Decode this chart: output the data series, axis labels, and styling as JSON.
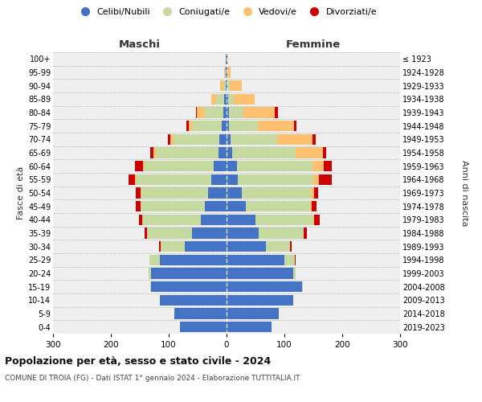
{
  "age_groups": [
    "0-4",
    "5-9",
    "10-14",
    "15-19",
    "20-24",
    "25-29",
    "30-34",
    "35-39",
    "40-44",
    "45-49",
    "50-54",
    "55-59",
    "60-64",
    "65-69",
    "70-74",
    "75-79",
    "80-84",
    "85-89",
    "90-94",
    "95-99",
    "100+"
  ],
  "birth_years": [
    "2019-2023",
    "2014-2018",
    "2009-2013",
    "2004-2008",
    "1999-2003",
    "1994-1998",
    "1989-1993",
    "1984-1988",
    "1979-1983",
    "1974-1978",
    "1969-1973",
    "1964-1968",
    "1959-1963",
    "1954-1958",
    "1949-1953",
    "1944-1948",
    "1939-1943",
    "1934-1938",
    "1929-1933",
    "1924-1928",
    "≤ 1923"
  ],
  "male_celibi": [
    80,
    90,
    115,
    130,
    130,
    115,
    72,
    60,
    45,
    38,
    32,
    26,
    22,
    14,
    12,
    8,
    5,
    4,
    2,
    2,
    1
  ],
  "male_coniugati": [
    0,
    0,
    0,
    2,
    5,
    18,
    42,
    78,
    100,
    110,
    115,
    130,
    120,
    108,
    80,
    52,
    32,
    14,
    3,
    1,
    0
  ],
  "male_vedovi": [
    0,
    0,
    0,
    0,
    0,
    0,
    0,
    0,
    1,
    1,
    2,
    3,
    3,
    5,
    5,
    5,
    14,
    8,
    6,
    1,
    0
  ],
  "male_divorziati": [
    0,
    0,
    0,
    0,
    0,
    1,
    2,
    3,
    5,
    8,
    8,
    10,
    13,
    5,
    4,
    5,
    2,
    0,
    0,
    0,
    0
  ],
  "female_celibi": [
    78,
    90,
    115,
    130,
    115,
    100,
    68,
    55,
    50,
    34,
    26,
    20,
    18,
    10,
    7,
    4,
    4,
    3,
    2,
    1,
    1
  ],
  "female_coniugati": [
    0,
    0,
    0,
    2,
    5,
    18,
    42,
    78,
    100,
    110,
    120,
    130,
    130,
    110,
    80,
    50,
    25,
    10,
    4,
    1,
    0
  ],
  "female_vedovi": [
    0,
    0,
    0,
    0,
    0,
    0,
    0,
    1,
    1,
    3,
    5,
    10,
    20,
    47,
    62,
    62,
    55,
    36,
    20,
    5,
    2
  ],
  "female_divorziati": [
    0,
    0,
    0,
    0,
    0,
    2,
    3,
    5,
    10,
    8,
    8,
    22,
    14,
    5,
    5,
    5,
    5,
    0,
    0,
    0,
    0
  ],
  "color_celibi": "#4472c4",
  "color_coniugati": "#c5d9a0",
  "color_vedovi": "#ffc06f",
  "color_divorziati": "#cc0000",
  "title_main": "Popolazione per età, sesso e stato civile - 2024",
  "title_sub": "COMUNE DI TROIA (FG) - Dati ISTAT 1° gennaio 2024 - Elaborazione TUTTITALIA.IT",
  "ylabel_left": "Fasce di età",
  "ylabel_right": "Anni di nascita",
  "xlabel_left": "Maschi",
  "xlabel_right": "Femmine",
  "xlim": 300,
  "bg_color": "#efefef",
  "legend_labels": [
    "Celibi/Nubili",
    "Coniugati/e",
    "Vedovi/e",
    "Divorziati/e"
  ]
}
